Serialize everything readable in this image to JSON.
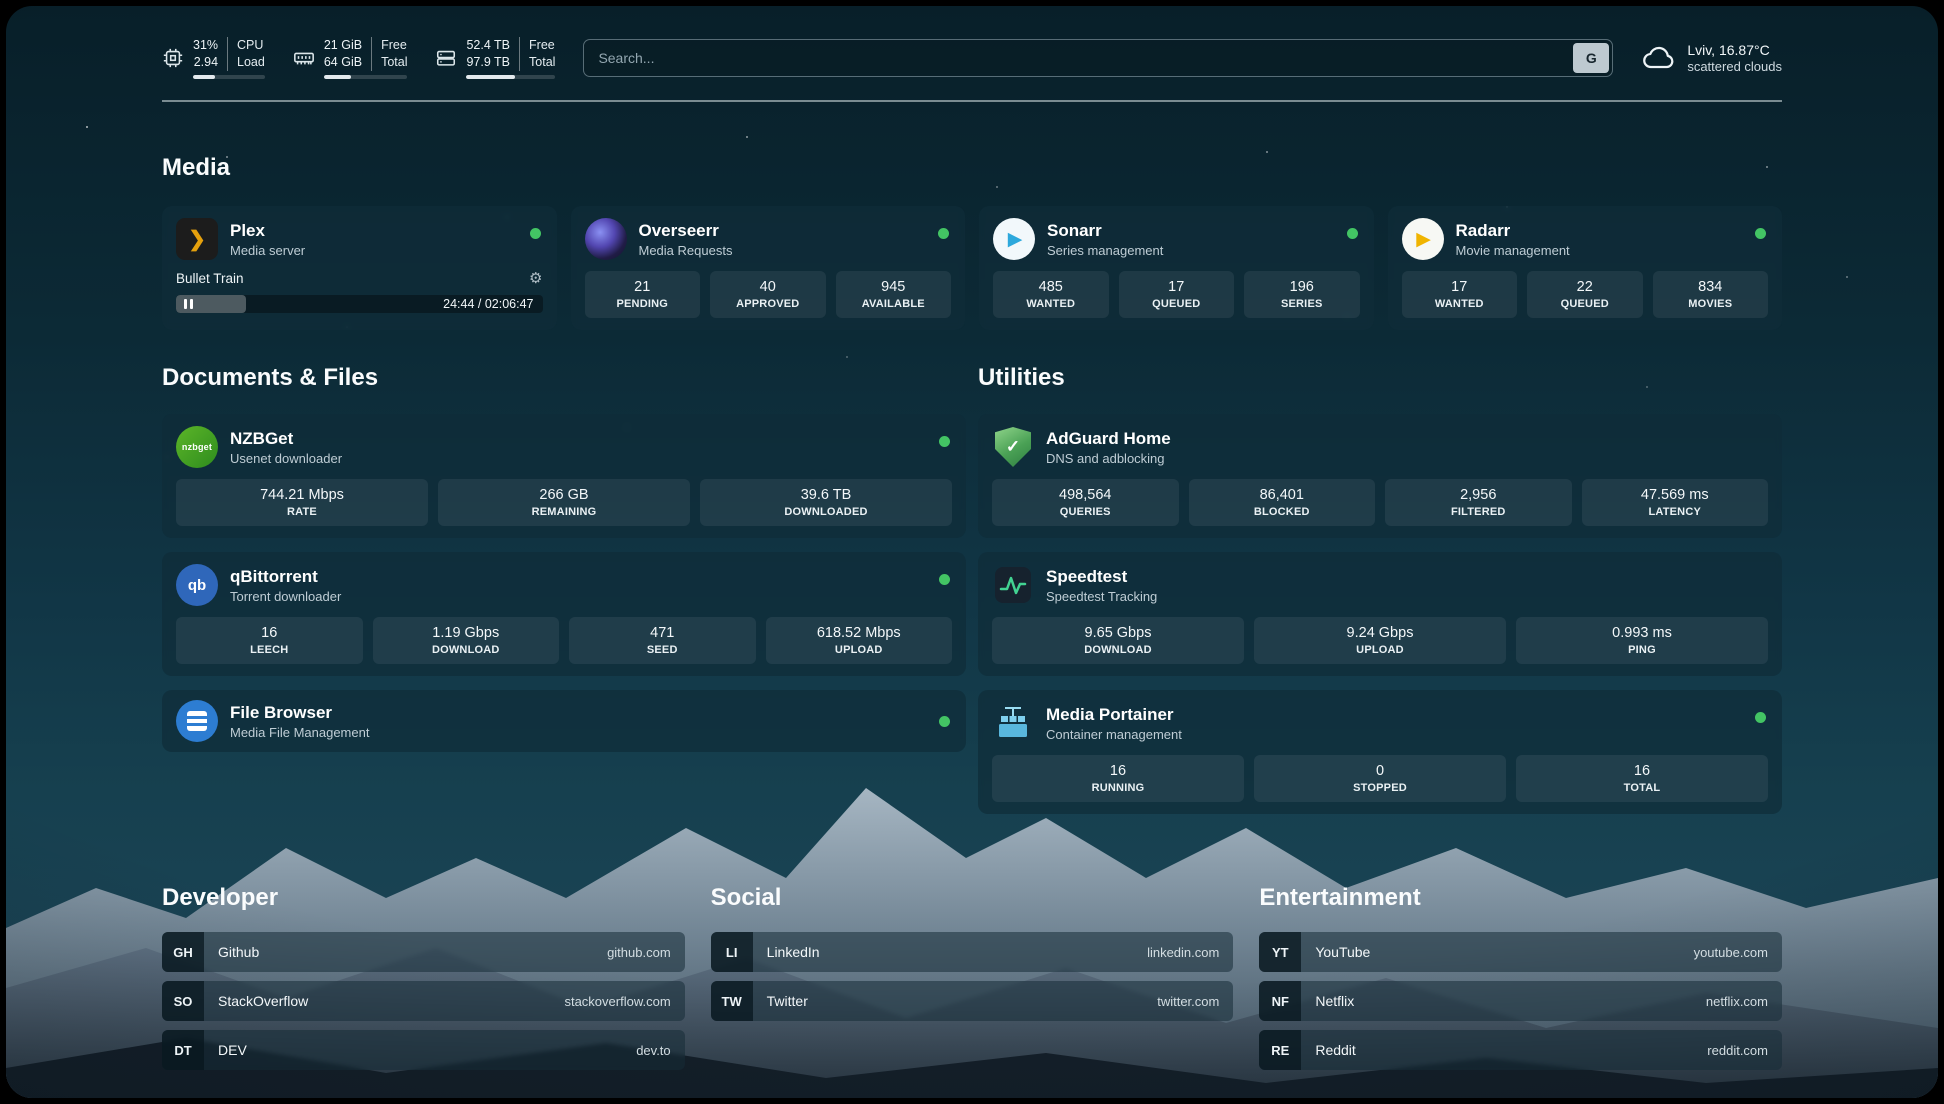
{
  "header": {
    "cpu": {
      "percent": "31%",
      "load": "2.94",
      "label_top": "CPU",
      "label_bottom": "Load",
      "bar_percent": 31
    },
    "ram": {
      "free": "21 GiB",
      "total": "64 GiB",
      "label_top": "Free",
      "label_bottom": "Total",
      "bar_percent": 33
    },
    "disk": {
      "free": "52.4 TB",
      "total": "97.9 TB",
      "label_top": "Free",
      "label_bottom": "Total",
      "bar_percent": 54
    },
    "search": {
      "placeholder": "Search...",
      "engine_label": "G"
    },
    "weather": {
      "location": "Lviv, 16.87°C",
      "condition": "scattered clouds"
    }
  },
  "sections": {
    "media": "Media",
    "documents": "Documents & Files",
    "utilities": "Utilities",
    "developer": "Developer",
    "social": "Social",
    "entertainment": "Entertainment"
  },
  "icons": {
    "plex_glyph": "❯",
    "play_glyph": "▶",
    "check_glyph": "✓",
    "gear_glyph": "⚙"
  },
  "apps": {
    "plex": {
      "name": "Plex",
      "subtitle": "Media server",
      "now_playing": "Bullet Train",
      "time": "24:44 / 02:06:47",
      "progress_percent": 19
    },
    "overseerr": {
      "name": "Overseerr",
      "subtitle": "Media Requests",
      "stats": [
        {
          "value": "21",
          "label": "PENDING"
        },
        {
          "value": "40",
          "label": "APPROVED"
        },
        {
          "value": "945",
          "label": "AVAILABLE"
        }
      ]
    },
    "sonarr": {
      "name": "Sonarr",
      "subtitle": "Series management",
      "stats": [
        {
          "value": "485",
          "label": "WANTED"
        },
        {
          "value": "17",
          "label": "QUEUED"
        },
        {
          "value": "196",
          "label": "SERIES"
        }
      ]
    },
    "radarr": {
      "name": "Radarr",
      "subtitle": "Movie management",
      "stats": [
        {
          "value": "17",
          "label": "WANTED"
        },
        {
          "value": "22",
          "label": "QUEUED"
        },
        {
          "value": "834",
          "label": "MOVIES"
        }
      ]
    },
    "nzbget": {
      "name": "NZBGet",
      "subtitle": "Usenet downloader",
      "icon_text": "nzbget",
      "stats": [
        {
          "value": "744.21 Mbps",
          "label": "RATE"
        },
        {
          "value": "266 GB",
          "label": "REMAINING"
        },
        {
          "value": "39.6 TB",
          "label": "DOWNLOADED"
        }
      ]
    },
    "qbittorrent": {
      "name": "qBittorrent",
      "subtitle": "Torrent downloader",
      "icon_text": "qb",
      "stats": [
        {
          "value": "16",
          "label": "LEECH"
        },
        {
          "value": "1.19 Gbps",
          "label": "DOWNLOAD"
        },
        {
          "value": "471",
          "label": "SEED"
        },
        {
          "value": "618.52 Mbps",
          "label": "UPLOAD"
        }
      ]
    },
    "filebrowser": {
      "name": "File Browser",
      "subtitle": "Media File Management"
    },
    "adguard": {
      "name": "AdGuard Home",
      "subtitle": "DNS and adblocking",
      "stats": [
        {
          "value": "498,564",
          "label": "QUERIES"
        },
        {
          "value": "86,401",
          "label": "BLOCKED"
        },
        {
          "value": "2,956",
          "label": "FILTERED"
        },
        {
          "value": "47.569 ms",
          "label": "LATENCY"
        }
      ]
    },
    "speedtest": {
      "name": "Speedtest",
      "subtitle": "Speedtest Tracking",
      "stats": [
        {
          "value": "9.65 Gbps",
          "label": "DOWNLOAD"
        },
        {
          "value": "9.24 Gbps",
          "label": "UPLOAD"
        },
        {
          "value": "0.993 ms",
          "label": "PING"
        }
      ]
    },
    "portainer": {
      "name": "Media Portainer",
      "subtitle": "Container management",
      "stats": [
        {
          "value": "16",
          "label": "RUNNING"
        },
        {
          "value": "0",
          "label": "STOPPED"
        },
        {
          "value": "16",
          "label": "TOTAL"
        }
      ]
    }
  },
  "bookmarks": {
    "developer": [
      {
        "abbr": "GH",
        "name": "Github",
        "url": "github.com"
      },
      {
        "abbr": "SO",
        "name": "StackOverflow",
        "url": "stackoverflow.com"
      },
      {
        "abbr": "DT",
        "name": "DEV",
        "url": "dev.to"
      }
    ],
    "social": [
      {
        "abbr": "LI",
        "name": "LinkedIn",
        "url": "linkedin.com"
      },
      {
        "abbr": "TW",
        "name": "Twitter",
        "url": "twitter.com"
      }
    ],
    "entertainment": [
      {
        "abbr": "YT",
        "name": "YouTube",
        "url": "youtube.com"
      },
      {
        "abbr": "NF",
        "name": "Netflix",
        "url": "netflix.com"
      },
      {
        "abbr": "RE",
        "name": "Reddit",
        "url": "reddit.com"
      }
    ]
  },
  "colors": {
    "status_online": "#43c464",
    "plex_accent": "#e5a00d"
  }
}
